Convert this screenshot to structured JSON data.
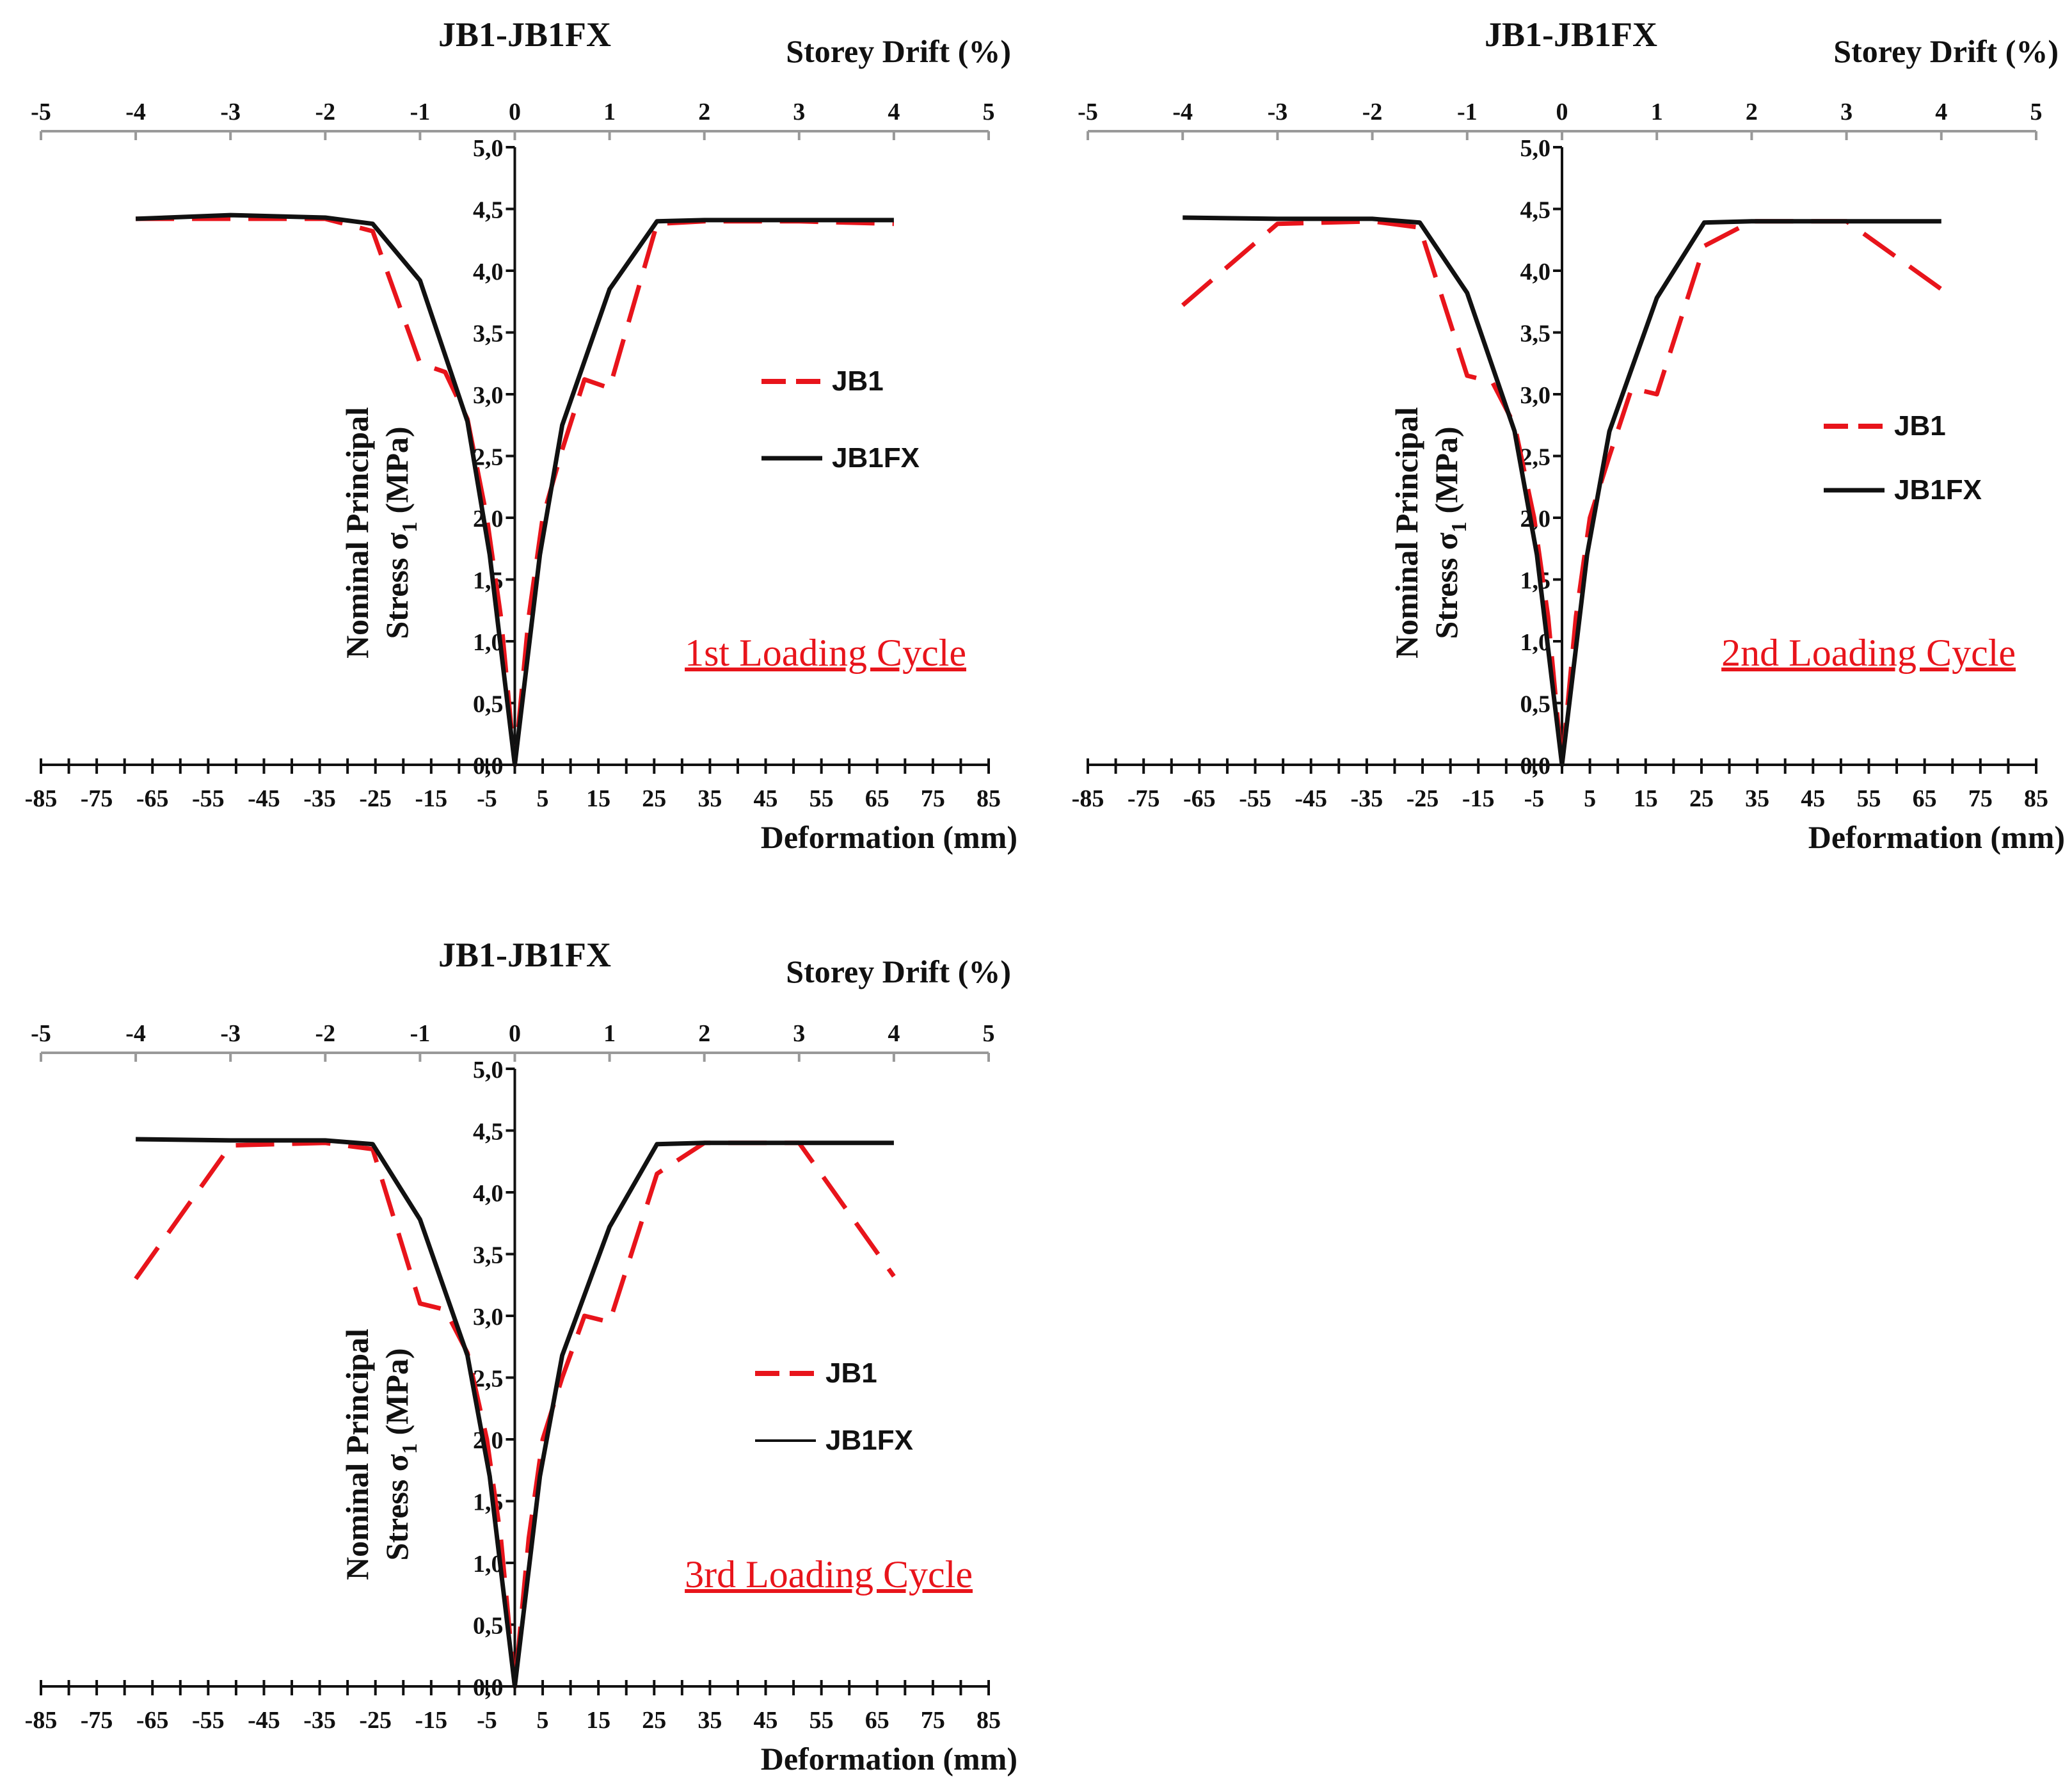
{
  "colors": {
    "jb1": "#e8141b",
    "jb1fx": "#111111",
    "axis": "#111111",
    "secondary_axis": "#999999"
  },
  "chart_data": [
    {
      "type": "line",
      "title": "JB1-JB1FX",
      "xlabel": "Deformation (mm)",
      "x2label": "Storey Drift (%)",
      "ylabel_line1": "Nominal Principal",
      "ylabel_line2": "Stress σ",
      "ylabel_sub": "1",
      "ylabel_unit": " (MPa)",
      "annotation": "1st Loading Cycle",
      "xlim": [
        -85,
        85
      ],
      "ylim": [
        0,
        5
      ],
      "x2lim": [
        -5,
        5
      ],
      "xticks": [
        "-85",
        "-75",
        "-65",
        "-55",
        "-45",
        "-35",
        "-25",
        "-15",
        "-5",
        "5",
        "15",
        "25",
        "35",
        "45",
        "55",
        "65",
        "75",
        "85"
      ],
      "xtick_values": [
        -85,
        -75,
        -65,
        -55,
        -45,
        -35,
        -25,
        -15,
        -5,
        5,
        15,
        25,
        35,
        45,
        55,
        65,
        75,
        85
      ],
      "x2ticks": [
        "-5",
        "-4",
        "-3",
        "-2",
        "-1",
        "0",
        "1",
        "2",
        "3",
        "4",
        "5"
      ],
      "yticks": [
        "0,0",
        "0,5",
        "1,0",
        "1,5",
        "2,0",
        "2,5",
        "3,0",
        "3,5",
        "4,0",
        "4,5",
        "5,0"
      ],
      "series": [
        {
          "name": "JB1",
          "style": "dashed",
          "x": [
            -68,
            -51,
            -34,
            -25.5,
            -17,
            -12.5,
            -8.5,
            -5,
            -2.5,
            0,
            2.5,
            5,
            8.5,
            12.5,
            17,
            25.5,
            34,
            51,
            68
          ],
          "y": [
            4.42,
            4.42,
            4.42,
            4.32,
            3.25,
            3.18,
            2.8,
            2.0,
            1.2,
            0.0,
            1.2,
            2.0,
            2.55,
            3.12,
            3.05,
            4.38,
            4.4,
            4.4,
            4.38
          ]
        },
        {
          "name": "JB1FX",
          "style": "solid",
          "x": [
            -68,
            -51,
            -34,
            -25.5,
            -17,
            -8.5,
            -4.5,
            0,
            4.5,
            8.5,
            17,
            25.5,
            34,
            51,
            68
          ],
          "y": [
            4.42,
            4.45,
            4.43,
            4.38,
            3.92,
            2.78,
            1.7,
            0.0,
            1.7,
            2.75,
            3.85,
            4.4,
            4.41,
            4.41,
            4.41
          ]
        }
      ]
    },
    {
      "type": "line",
      "title": "JB1-JB1FX",
      "xlabel": "Deformation (mm)",
      "x2label": "Storey Drift (%)",
      "ylabel_line1": "Nominal Principal",
      "ylabel_line2": "Stress σ",
      "ylabel_sub": "1",
      "ylabel_unit": " (MPa)",
      "annotation": "2nd Loading Cycle",
      "xlim": [
        -85,
        85
      ],
      "ylim": [
        0,
        5
      ],
      "x2lim": [
        -5,
        5
      ],
      "xticks": [
        "-85",
        "-75",
        "-65",
        "-55",
        "-45",
        "-35",
        "-25",
        "-15",
        "-5",
        "5",
        "15",
        "25",
        "35",
        "45",
        "55",
        "65",
        "75",
        "85"
      ],
      "xtick_values": [
        -85,
        -75,
        -65,
        -55,
        -45,
        -35,
        -25,
        -15,
        -5,
        5,
        15,
        25,
        35,
        45,
        55,
        65,
        75,
        85
      ],
      "x2ticks": [
        "-5",
        "-4",
        "-3",
        "-2",
        "-1",
        "0",
        "1",
        "2",
        "3",
        "4",
        "5"
      ],
      "yticks": [
        "0,0",
        "0,5",
        "1,0",
        "1,5",
        "2,0",
        "2,5",
        "3,0",
        "3,5",
        "4,0",
        "4,5",
        "5,0"
      ],
      "series": [
        {
          "name": "JB1",
          "style": "dashed",
          "x": [
            -68,
            -51,
            -34,
            -25.5,
            -17,
            -12.5,
            -8.5,
            -5,
            -2.5,
            0,
            2.5,
            5,
            8.5,
            12.5,
            17,
            25.5,
            34,
            51,
            68
          ],
          "y": [
            3.72,
            4.38,
            4.4,
            4.35,
            3.15,
            3.1,
            2.75,
            2.0,
            1.2,
            0.0,
            1.2,
            2.0,
            2.5,
            3.05,
            3.0,
            4.2,
            4.4,
            4.4,
            3.85
          ]
        },
        {
          "name": "JB1FX",
          "style": "solid",
          "x": [
            -68,
            -51,
            -34,
            -25.5,
            -17,
            -8.5,
            -4.5,
            0,
            4.5,
            8.5,
            17,
            25.5,
            34,
            51,
            68
          ],
          "y": [
            4.43,
            4.42,
            4.42,
            4.39,
            3.82,
            2.7,
            1.7,
            0.0,
            1.7,
            2.7,
            3.78,
            4.39,
            4.4,
            4.4,
            4.4
          ]
        }
      ]
    },
    {
      "type": "line",
      "title": "JB1-JB1FX",
      "xlabel": "Deformation (mm)",
      "x2label": "Storey Drift (%)",
      "ylabel_line1": "Nominal Principal",
      "ylabel_line2": "Stress σ",
      "ylabel_sub": "1",
      "ylabel_unit": " (MPa)",
      "annotation": "3rd Loading Cycle",
      "xlim": [
        -85,
        85
      ],
      "ylim": [
        0,
        5
      ],
      "x2lim": [
        -5,
        5
      ],
      "xticks": [
        "-85",
        "-75",
        "-65",
        "-55",
        "-45",
        "-35",
        "-25",
        "-15",
        "-5",
        "5",
        "15",
        "25",
        "35",
        "45",
        "55",
        "65",
        "75",
        "85"
      ],
      "xtick_values": [
        -85,
        -75,
        -65,
        -55,
        -45,
        -35,
        -25,
        -15,
        -5,
        5,
        15,
        25,
        35,
        45,
        55,
        65,
        75,
        85
      ],
      "x2ticks": [
        "-5",
        "-4",
        "-3",
        "-2",
        "-1",
        "0",
        "1",
        "2",
        "3",
        "4",
        "5"
      ],
      "yticks": [
        "0,0",
        "0,5",
        "1,0",
        "1,5",
        "2,0",
        "2,5",
        "3,0",
        "3,5",
        "4,0",
        "4,5",
        "5,0"
      ],
      "series": [
        {
          "name": "JB1",
          "style": "dashed",
          "x": [
            -68,
            -51,
            -34,
            -25.5,
            -17,
            -12.5,
            -8.5,
            -5,
            -2.5,
            0,
            2.5,
            5,
            8.5,
            12.5,
            17,
            25.5,
            34,
            51,
            68
          ],
          "y": [
            3.3,
            4.38,
            4.4,
            4.35,
            3.1,
            3.05,
            2.7,
            2.0,
            1.2,
            0.0,
            1.2,
            2.0,
            2.5,
            3.0,
            2.95,
            4.15,
            4.4,
            4.4,
            3.32
          ]
        },
        {
          "name": "JB1FX",
          "style": "solid",
          "x": [
            -68,
            -51,
            -34,
            -25.5,
            -17,
            -8.5,
            -4.5,
            0,
            4.5,
            8.5,
            17,
            25.5,
            34,
            51,
            68
          ],
          "y": [
            4.43,
            4.42,
            4.42,
            4.39,
            3.78,
            2.68,
            1.7,
            0.0,
            1.7,
            2.68,
            3.72,
            4.39,
            4.4,
            4.4,
            4.4
          ]
        }
      ]
    }
  ]
}
